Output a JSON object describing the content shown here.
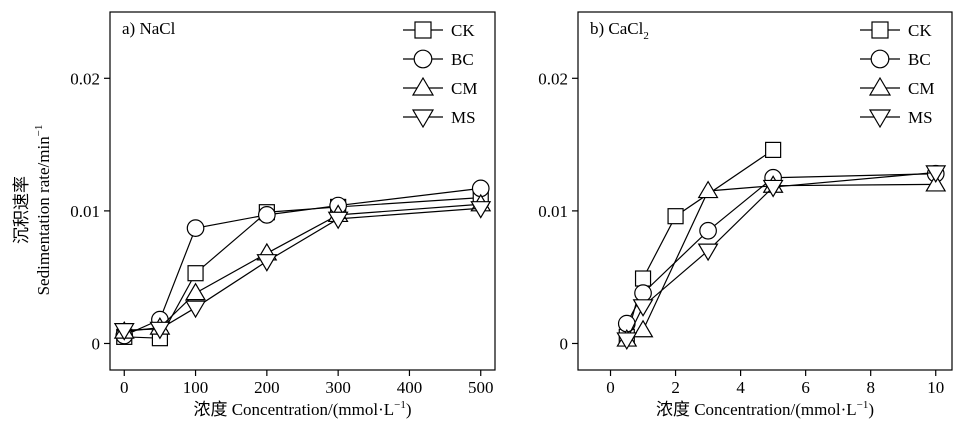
{
  "ylabel_cn": "沉积速率",
  "ylabel_en": "Sedimentation rate/min",
  "ylabel_sup": "−1",
  "chart_data": [
    {
      "type": "line",
      "panel_label": "a) NaCl",
      "xlabel": "浓度 Concentration/(mmol·L",
      "xlabel_sup": "−1",
      "xlabel_close": ")",
      "xlim": [
        -20,
        520
      ],
      "ylim": [
        -0.002,
        0.025
      ],
      "xticks": [
        0,
        100,
        200,
        300,
        400,
        500
      ],
      "xtick_labels": [
        "0",
        "100",
        "200",
        "300",
        "400",
        "500"
      ],
      "yticks": [
        0,
        0.01,
        0.02
      ],
      "ytick_labels": [
        "0",
        "0.01",
        "0.02"
      ],
      "legend_position": "top-right",
      "series": [
        {
          "name": "CK",
          "marker": "square",
          "x": [
            0,
            50,
            100,
            200,
            300,
            500
          ],
          "y": [
            0.0005,
            0.0004,
            0.0053,
            0.0099,
            0.0103,
            0.011
          ]
        },
        {
          "name": "BC",
          "marker": "circle",
          "x": [
            0,
            50,
            100,
            200,
            300,
            500
          ],
          "y": [
            0.0006,
            0.0018,
            0.0087,
            0.0097,
            0.0104,
            0.0117
          ]
        },
        {
          "name": "CM",
          "marker": "triangle-up",
          "x": [
            0,
            50,
            100,
            200,
            300,
            500
          ],
          "y": [
            0.0009,
            0.0012,
            0.0038,
            0.0068,
            0.0097,
            0.0105
          ]
        },
        {
          "name": "MS",
          "marker": "triangle-down",
          "x": [
            0,
            50,
            100,
            200,
            300,
            500
          ],
          "y": [
            0.001,
            0.0011,
            0.0027,
            0.0062,
            0.0094,
            0.0102
          ]
        }
      ]
    },
    {
      "type": "line",
      "panel_label": "b) CaCl",
      "panel_label_sub": "2",
      "xlabel": "浓度 Concentration/(mmol·L",
      "xlabel_sup": "−1",
      "xlabel_close": ")",
      "xlim": [
        -1,
        10.5
      ],
      "ylim": [
        -0.002,
        0.025
      ],
      "xticks": [
        0,
        2,
        4,
        6,
        8,
        10
      ],
      "xtick_labels": [
        "0",
        "2",
        "4",
        "6",
        "8",
        "10"
      ],
      "yticks": [
        0,
        0.01,
        0.02
      ],
      "ytick_labels": [
        "0",
        "0.01",
        "0.02"
      ],
      "legend_position": "top-right",
      "series": [
        {
          "name": "CK",
          "marker": "square",
          "x": [
            0.5,
            1,
            2,
            5
          ],
          "y": [
            0.0005,
            0.0049,
            0.0096,
            0.0146
          ]
        },
        {
          "name": "BC",
          "marker": "circle",
          "x": [
            0.5,
            1,
            3,
            5,
            10
          ],
          "y": [
            0.0015,
            0.0038,
            0.0085,
            0.0125,
            0.0128
          ]
        },
        {
          "name": "CM",
          "marker": "triangle-up",
          "x": [
            0.5,
            1,
            3,
            5,
            10
          ],
          "y": [
            0.0003,
            0.001,
            0.0115,
            0.0119,
            0.012
          ]
        },
        {
          "name": "MS",
          "marker": "triangle-down",
          "x": [
            0.5,
            1,
            3,
            5,
            10
          ],
          "y": [
            0.0003,
            0.0028,
            0.007,
            0.0118,
            0.0129
          ]
        }
      ]
    }
  ]
}
